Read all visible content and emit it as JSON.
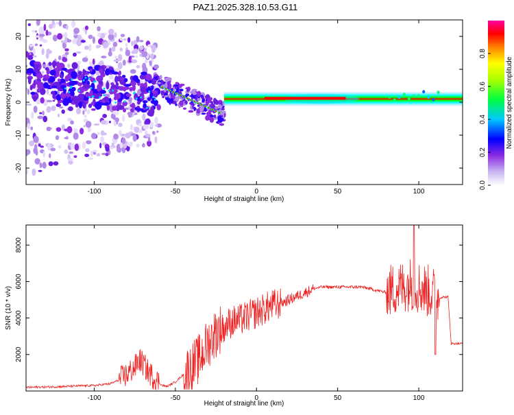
{
  "title": "PAZ1.2025.328.10.53.G11",
  "chart_data": [
    {
      "type": "heatmap",
      "name": "spectrogram",
      "xlabel": "Height of straight line (km)",
      "ylabel": "Frequency (Hz)",
      "xlim": [
        -142,
        127
      ],
      "ylim": [
        -25,
        25
      ],
      "xticks": [
        -100,
        -50,
        0,
        50,
        100
      ],
      "yticks": [
        -20,
        -10,
        0,
        10,
        20
      ],
      "colorbar": {
        "label": "Normalized spectral amplitude",
        "ticks": [
          0.0,
          0.2,
          0.4,
          0.6,
          0.8
        ],
        "range": [
          0,
          1
        ],
        "colors": [
          "#ffffff",
          "#8a2be2",
          "#0000ff",
          "#00ffff",
          "#00ff00",
          "#ffff00",
          "#ff8000",
          "#ff0000",
          "#ff00ff"
        ]
      },
      "features": [
        {
          "segment": "diffuse noise",
          "height_km": [
            -142,
            -60
          ],
          "freq_hz": [
            -25,
            25
          ],
          "peak_amplitude": 0.35
        },
        {
          "segment": "tilted signal",
          "height_km": [
            -60,
            -20
          ],
          "freq_hz": [
            -8,
            6
          ],
          "peak_amplitude": 0.55
        },
        {
          "segment": "narrow line",
          "height_km": [
            -20,
            127
          ],
          "freq_hz": [
            0,
            2
          ],
          "peak_amplitude": 1.0
        }
      ]
    },
    {
      "type": "line",
      "name": "snr",
      "xlabel": "Height of straight line (km)",
      "ylabel": "SNR (10 * v/v)",
      "xlim": [
        -142,
        127
      ],
      "ylim": [
        0,
        9100
      ],
      "xticks": [
        -100,
        -50,
        0,
        50,
        100
      ],
      "yticks": [
        2000,
        4000,
        6000,
        8000
      ],
      "color": "#ee2222",
      "series": [
        {
          "name": "SNR",
          "x": [
            -142,
            -130,
            -120,
            -110,
            -100,
            -90,
            -85,
            -80,
            -75,
            -72,
            -70,
            -67,
            -62,
            -58,
            -55,
            -50,
            -45,
            -40,
            -35,
            -30,
            -25,
            -20,
            -15,
            -10,
            -5,
            0,
            5,
            10,
            15,
            20,
            25,
            30,
            35,
            40,
            45,
            50,
            55,
            60,
            65,
            70,
            75,
            80,
            85,
            90,
            95,
            100,
            105,
            110,
            112,
            115,
            118,
            120,
            127
          ],
          "y": [
            200,
            220,
            240,
            280,
            300,
            400,
            600,
            900,
            1300,
            1700,
            1500,
            1100,
            600,
            300,
            250,
            500,
            900,
            1300,
            1800,
            2600,
            3200,
            3600,
            3800,
            3900,
            4100,
            4300,
            4500,
            4700,
            4800,
            5000,
            5200,
            5400,
            5600,
            5700,
            5700,
            5700,
            5700,
            5700,
            5700,
            5600,
            5500,
            5400,
            5600,
            5700,
            5900,
            5700,
            5500,
            5300,
            5100,
            5150,
            5150,
            2600,
            2600
          ]
        }
      ],
      "annotations": {
        "max_spike": {
          "x": 97,
          "y": 9100
        },
        "dip": {
          "x": 110,
          "y": 2000
        }
      }
    }
  ]
}
